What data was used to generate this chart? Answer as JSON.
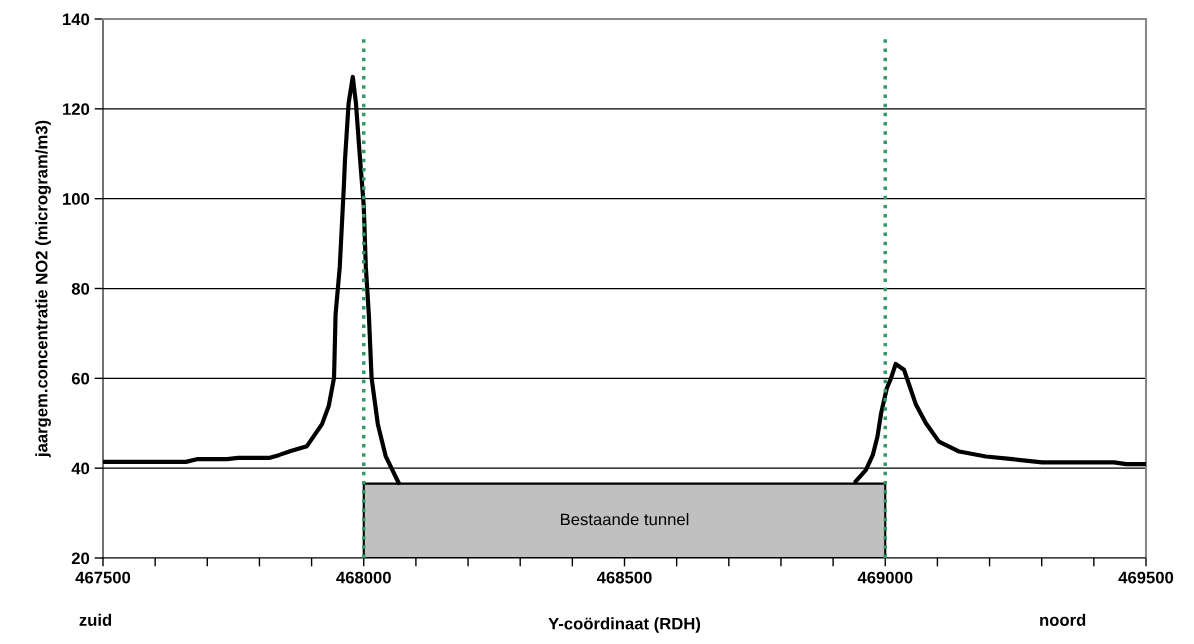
{
  "chart_data": {
    "type": "line",
    "xlabel": "Y-coördinaat (RDH)",
    "ylabel": "jaargem.concentratie NO2 (microgram/m3)",
    "annotations": [
      "zuid",
      "noord"
    ],
    "series": [
      {
        "color": "#000000",
        "x": [
          467500,
          467659,
          467680,
          467738,
          467759,
          467820,
          467837,
          467860,
          467891,
          467920,
          467933,
          467943,
          467946,
          467954,
          467962,
          467964,
          467971,
          467979,
          467985,
          467992,
          468000,
          468004,
          468010,
          468015,
          468027,
          468042,
          468067,
          468068,
          468942,
          468943,
          468963,
          468976,
          468985,
          468992,
          469003,
          469011,
          469020,
          469036,
          469059,
          469078,
          469103,
          469142,
          469193,
          469244,
          469301,
          469439,
          469462,
          469500
        ],
        "values": [
          41.4,
          41.4,
          42.0,
          42.0,
          42.3,
          42.3,
          42.9,
          43.8,
          44.9,
          49.8,
          53.9,
          60.1,
          74.3,
          84.8,
          103.1,
          108.6,
          121.3,
          127.1,
          121.3,
          110.2,
          98.4,
          84.8,
          73.7,
          60.1,
          49.8,
          42.7,
          36.7,
          null,
          null,
          37.0,
          39.6,
          42.9,
          47.0,
          52.2,
          57.8,
          60.0,
          63.2,
          61.9,
          54.1,
          50.0,
          45.9,
          43.7,
          42.6,
          42.0,
          41.3,
          41.3,
          40.9,
          40.9
        ]
      }
    ],
    "bands": [
      {
        "axis": "x",
        "from": 468000,
        "to": 469000,
        "label": "Bestaande tunnel",
        "color": "#c0c0c0"
      }
    ],
    "ref_lines": [
      {
        "axis": "x",
        "value": 468000,
        "color": "#339966",
        "line_style": "dotted"
      },
      {
        "axis": "x",
        "value": 469000,
        "color": "#339966",
        "line_style": "dotted"
      }
    ],
    "xlim": [
      467500,
      469500
    ],
    "xticks": [
      467500,
      {
        "value": 467600,
        "label": null
      },
      {
        "value": 467700,
        "label": null
      },
      {
        "value": 467800,
        "label": null
      },
      {
        "value": 467900,
        "label": null
      },
      468000,
      {
        "value": 468100,
        "label": null
      },
      {
        "value": 468200,
        "label": null
      },
      {
        "value": 468300,
        "label": null
      },
      {
        "value": 468400,
        "label": null
      },
      468500,
      {
        "value": 468600,
        "label": null
      },
      {
        "value": 468700,
        "label": null
      },
      {
        "value": 468800,
        "label": null
      },
      {
        "value": 468900,
        "label": null
      },
      469000,
      {
        "value": 469100,
        "label": null
      },
      {
        "value": 469200,
        "label": null
      },
      {
        "value": 469300,
        "label": null
      },
      {
        "value": 469400,
        "label": null
      },
      469500
    ],
    "ylim": [
      20,
      140
    ],
    "yticks": [
      20,
      40,
      60,
      80,
      100,
      120,
      140
    ],
    "grid": "y",
    "legend": false,
    "marker": "none",
    "line_style": "solid"
  }
}
